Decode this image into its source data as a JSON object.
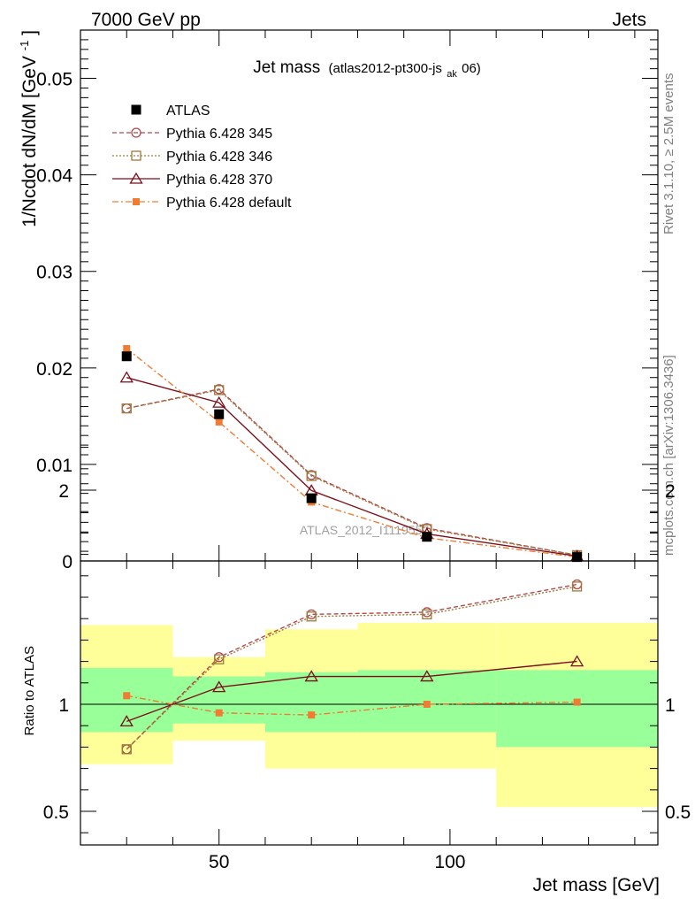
{
  "header": {
    "left": "7000 GeV pp",
    "right": "Jets"
  },
  "side_labels": {
    "rivet": "Rivet 3.1.10, ≥ 2.5M events",
    "mcplots": "mcplots.cern.ch [arXiv:1306.3436]"
  },
  "watermark": "ATLAS_2012_I1119557",
  "chart_data": {
    "type": "line",
    "title": "Jet mass",
    "title_tag_prefix": "(atlas2012-pt300-js",
    "title_tag_sub": "ak",
    "title_tag_suffix": "06)",
    "xlabel": "Jet mass [GeV]",
    "ylabel_main": "1/Ncdot dN/dM [GeV",
    "ylabel_sup": "-1",
    "ylabel_close": "]",
    "ylabel_ratio": "Ratio to ATLAS",
    "xlim": [
      20,
      145
    ],
    "main_ylim": [
      0,
      0.055
    ],
    "ratio_ylim": [
      0.35,
      2.25
    ],
    "x_ticks": [
      {
        "value": 50,
        "label": "50"
      },
      {
        "value": 100,
        "label": "100"
      }
    ],
    "main_y_ticks": [
      {
        "value": 0,
        "label": "0"
      },
      {
        "value": 0.01,
        "label": "0.01"
      },
      {
        "value": 0.02,
        "label": "0.02"
      },
      {
        "value": 0.03,
        "label": "0.03"
      },
      {
        "value": 0.04,
        "label": "0.04"
      },
      {
        "value": 0.05,
        "label": "0.05"
      }
    ],
    "ratio_y_ticks": [
      {
        "value": 0.5,
        "label": "0.5"
      },
      {
        "value": 1,
        "label": "1"
      },
      {
        "value": 2,
        "label": "2"
      }
    ],
    "bins": [
      {
        "lo": 20,
        "hi": 40
      },
      {
        "lo": 40,
        "hi": 60
      },
      {
        "lo": 60,
        "hi": 80
      },
      {
        "lo": 80,
        "hi": 110
      },
      {
        "lo": 110,
        "hi": 145
      }
    ],
    "band_inner": [
      {
        "lo": 0.87,
        "hi": 1.17
      },
      {
        "lo": 0.91,
        "hi": 1.13
      },
      {
        "lo": 0.87,
        "hi": 1.15
      },
      {
        "lo": 0.87,
        "hi": 1.16
      },
      {
        "lo": 0.8,
        "hi": 1.16
      }
    ],
    "band_outer": [
      {
        "lo": 0.72,
        "hi": 1.37
      },
      {
        "lo": 0.83,
        "hi": 1.22
      },
      {
        "lo": 0.7,
        "hi": 1.35
      },
      {
        "lo": 0.7,
        "hi": 1.38
      },
      {
        "lo": 0.52,
        "hi": 1.38
      }
    ],
    "x": [
      30,
      50,
      70,
      95,
      127.5
    ],
    "data_series": {
      "name": "ATLAS",
      "color": "#000000",
      "values": [
        0.0212,
        0.0152,
        0.0065,
        0.0025,
        0.0004
      ]
    },
    "series": [
      {
        "name": "Pythia 6.428 345",
        "color": "#b2474f",
        "marker": "circle",
        "dash": "5,3",
        "values": [
          0.0158,
          0.0178,
          0.0089,
          0.0034,
          0.0006
        ],
        "ratio": [
          0.79,
          1.22,
          1.42,
          1.43,
          1.56
        ]
      },
      {
        "name": "Pythia 6.428 346",
        "color": "#9e7a3b",
        "marker": "square-open",
        "dash": "2,2",
        "values": [
          0.0158,
          0.0177,
          0.0088,
          0.0033,
          0.0006
        ],
        "ratio": [
          0.79,
          1.21,
          1.41,
          1.42,
          1.55
        ]
      },
      {
        "name": "Pythia 6.428 370",
        "color": "#7d0e19",
        "marker": "triangle",
        "dash": "",
        "values": [
          0.019,
          0.0164,
          0.0073,
          0.0028,
          0.0005
        ],
        "ratio": [
          0.92,
          1.08,
          1.13,
          1.13,
          1.2
        ]
      },
      {
        "name": "Pythia 6.428 default",
        "color": "#f07c34",
        "marker": "square-filled",
        "dash": "7,3,2,3",
        "values": [
          0.022,
          0.0144,
          0.0061,
          0.0024,
          0.0004
        ],
        "ratio": [
          1.04,
          0.96,
          0.95,
          1.0,
          1.01
        ]
      }
    ],
    "colors": {
      "band_inner": "#99ff99",
      "band_outer": "#ffff99"
    }
  }
}
